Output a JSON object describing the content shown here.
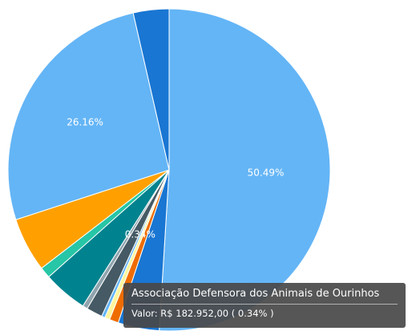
{
  "chart_data": {
    "type": "pie",
    "slices": [
      {
        "value": 50.49,
        "color": "#64b5f6",
        "label": "50.49%"
      },
      {
        "value": 4.1,
        "color": "#1976d2",
        "label": ""
      },
      {
        "value": 0.9,
        "color": "#ef6c00",
        "label": ""
      },
      {
        "value": 0.5,
        "color": "#fff59d",
        "label": ""
      },
      {
        "value": 0.34,
        "color": "#64b5f6",
        "label": "0.34%"
      },
      {
        "value": 1.6,
        "color": "#455a64",
        "label": ""
      },
      {
        "value": 0.5,
        "color": "#90a4ae",
        "label": ""
      },
      {
        "value": 4.4,
        "color": "#00838f",
        "label": ""
      },
      {
        "value": 1.1,
        "color": "#26c6a6",
        "label": ""
      },
      {
        "value": 5.4,
        "color": "#ffa000",
        "label": ""
      },
      {
        "value": 26.16,
        "color": "#64b5f6",
        "label": "26.16%"
      },
      {
        "value": 3.55,
        "color": "#1976d2",
        "label": ""
      }
    ]
  },
  "tooltip": {
    "title": "Associação Defensora dos Animais de Ourinhos",
    "value_text": "Valor: R$ 182.952,00 ( 0.34% )"
  }
}
